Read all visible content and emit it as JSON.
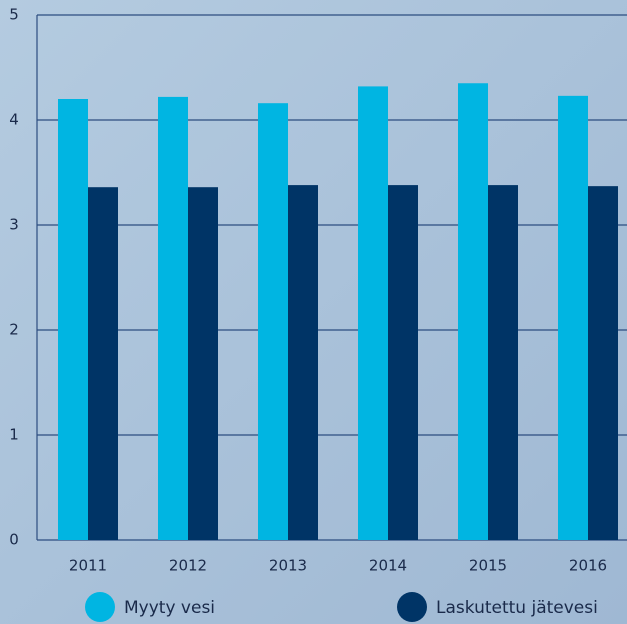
{
  "chart_data": {
    "type": "bar",
    "categories": [
      "2011",
      "2012",
      "2013",
      "2014",
      "2015",
      "2016"
    ],
    "series": [
      {
        "name": "Myyty vesi",
        "color": "#00b5e2",
        "values": [
          4.2,
          4.22,
          4.16,
          4.32,
          4.35,
          4.23
        ]
      },
      {
        "name": "Laskutettu jätevesi",
        "color": "#003466",
        "values": [
          3.36,
          3.36,
          3.38,
          3.38,
          3.38,
          3.37
        ]
      }
    ],
    "ylim": [
      0,
      5
    ],
    "yticks": [
      0,
      1,
      2,
      3,
      4,
      5
    ],
    "grid": true
  }
}
